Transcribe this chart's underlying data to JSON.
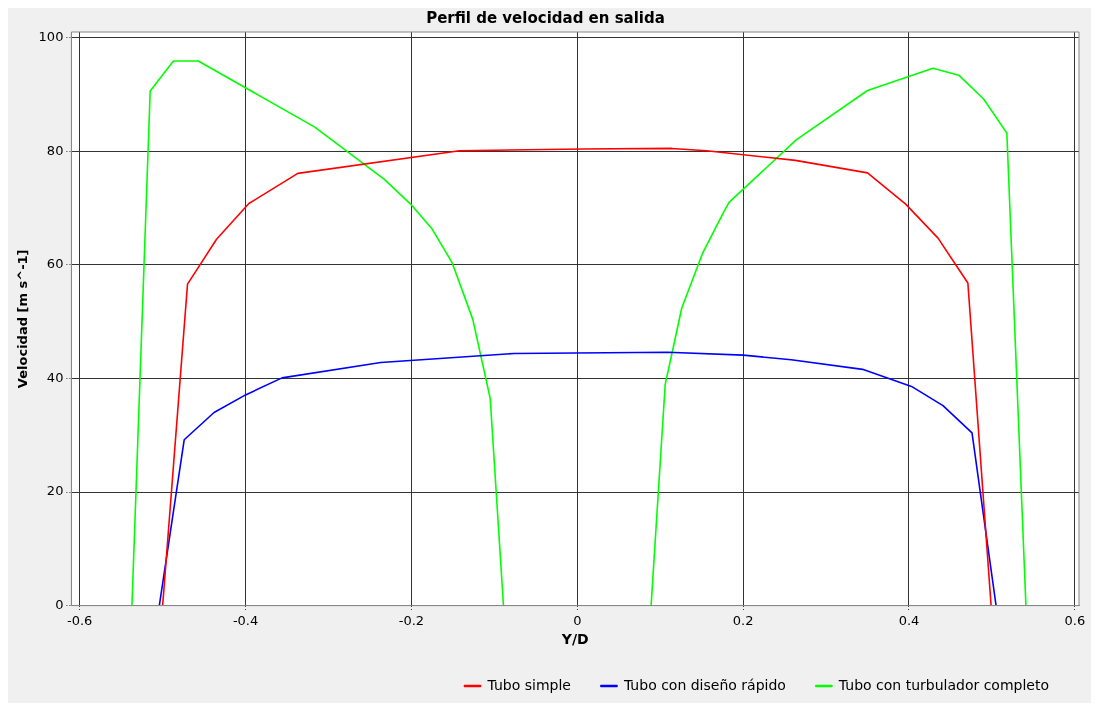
{
  "chart_data": {
    "type": "line",
    "title": "Perfil de velocidad en salida",
    "xlabel": "Y/D",
    "ylabel": "Velocidad [m s^-1]",
    "xlim": [
      -0.61,
      0.605
    ],
    "xticks": [
      {
        "value": -0.6,
        "label": "-0.6"
      },
      {
        "value": -0.4,
        "label": "-0.4"
      },
      {
        "value": -0.2,
        "label": "-0.2"
      },
      0,
      {
        "value": 0.2,
        "label": "0.2"
      },
      {
        "value": 0.4,
        "label": "0.4"
      },
      {
        "value": 0.6,
        "label": "0.6"
      }
    ],
    "ylim": [
      0,
      101
    ],
    "yticks": [
      0,
      20,
      40,
      60,
      80,
      100
    ],
    "grid": true,
    "legend": "bottom",
    "marker": "none",
    "line_style": "solid",
    "series": [
      {
        "name": "Tubo simple",
        "color": "#ff0000",
        "x": [
          -0.5,
          -0.47,
          -0.435,
          -0.396,
          -0.337,
          -0.142,
          0.007,
          0.114,
          0.156,
          0.263,
          0.35,
          0.396,
          0.435,
          0.471,
          0.499
        ],
        "values": [
          0,
          56.6,
          64.5,
          70.8,
          76.1,
          80.1,
          80.4,
          80.5,
          80.1,
          78.4,
          76.2,
          70.7,
          64.7,
          56.8,
          0
        ]
      },
      {
        "name": "Tubo con diseño rápido",
        "color": "#0000ff",
        "x": [
          -0.504,
          -0.474,
          -0.438,
          -0.4,
          -0.356,
          -0.237,
          -0.076,
          0.109,
          0.2,
          0.258,
          0.344,
          0.403,
          0.441,
          0.476,
          0.505
        ],
        "values": [
          0,
          29.2,
          34.0,
          37.1,
          40.1,
          42.8,
          44.4,
          44.6,
          44.1,
          43.3,
          41.6,
          38.6,
          35.2,
          30.4,
          0
        ]
      },
      {
        "name": "Tubo con turbulador completo",
        "color": "#00ff00",
        "x": [
          -0.537,
          -0.515,
          -0.487,
          -0.457,
          -0.317,
          -0.233,
          -0.201,
          -0.175,
          -0.151,
          -0.126,
          -0.105,
          -0.089,
          null,
          0.089,
          0.106,
          0.126,
          0.151,
          0.177,
          0.183,
          0.264,
          0.35,
          0.429,
          0.46,
          0.49,
          0.518,
          0.541
        ],
        "values": [
          0,
          90.6,
          95.9,
          95.9,
          84.3,
          75.1,
          70.7,
          66.3,
          60.4,
          50.4,
          36.5,
          0,
          null,
          0,
          38.9,
          52.4,
          62.0,
          69.4,
          71.0,
          82.0,
          90.7,
          94.6,
          93.4,
          89.2,
          83.2,
          0
        ]
      }
    ]
  }
}
